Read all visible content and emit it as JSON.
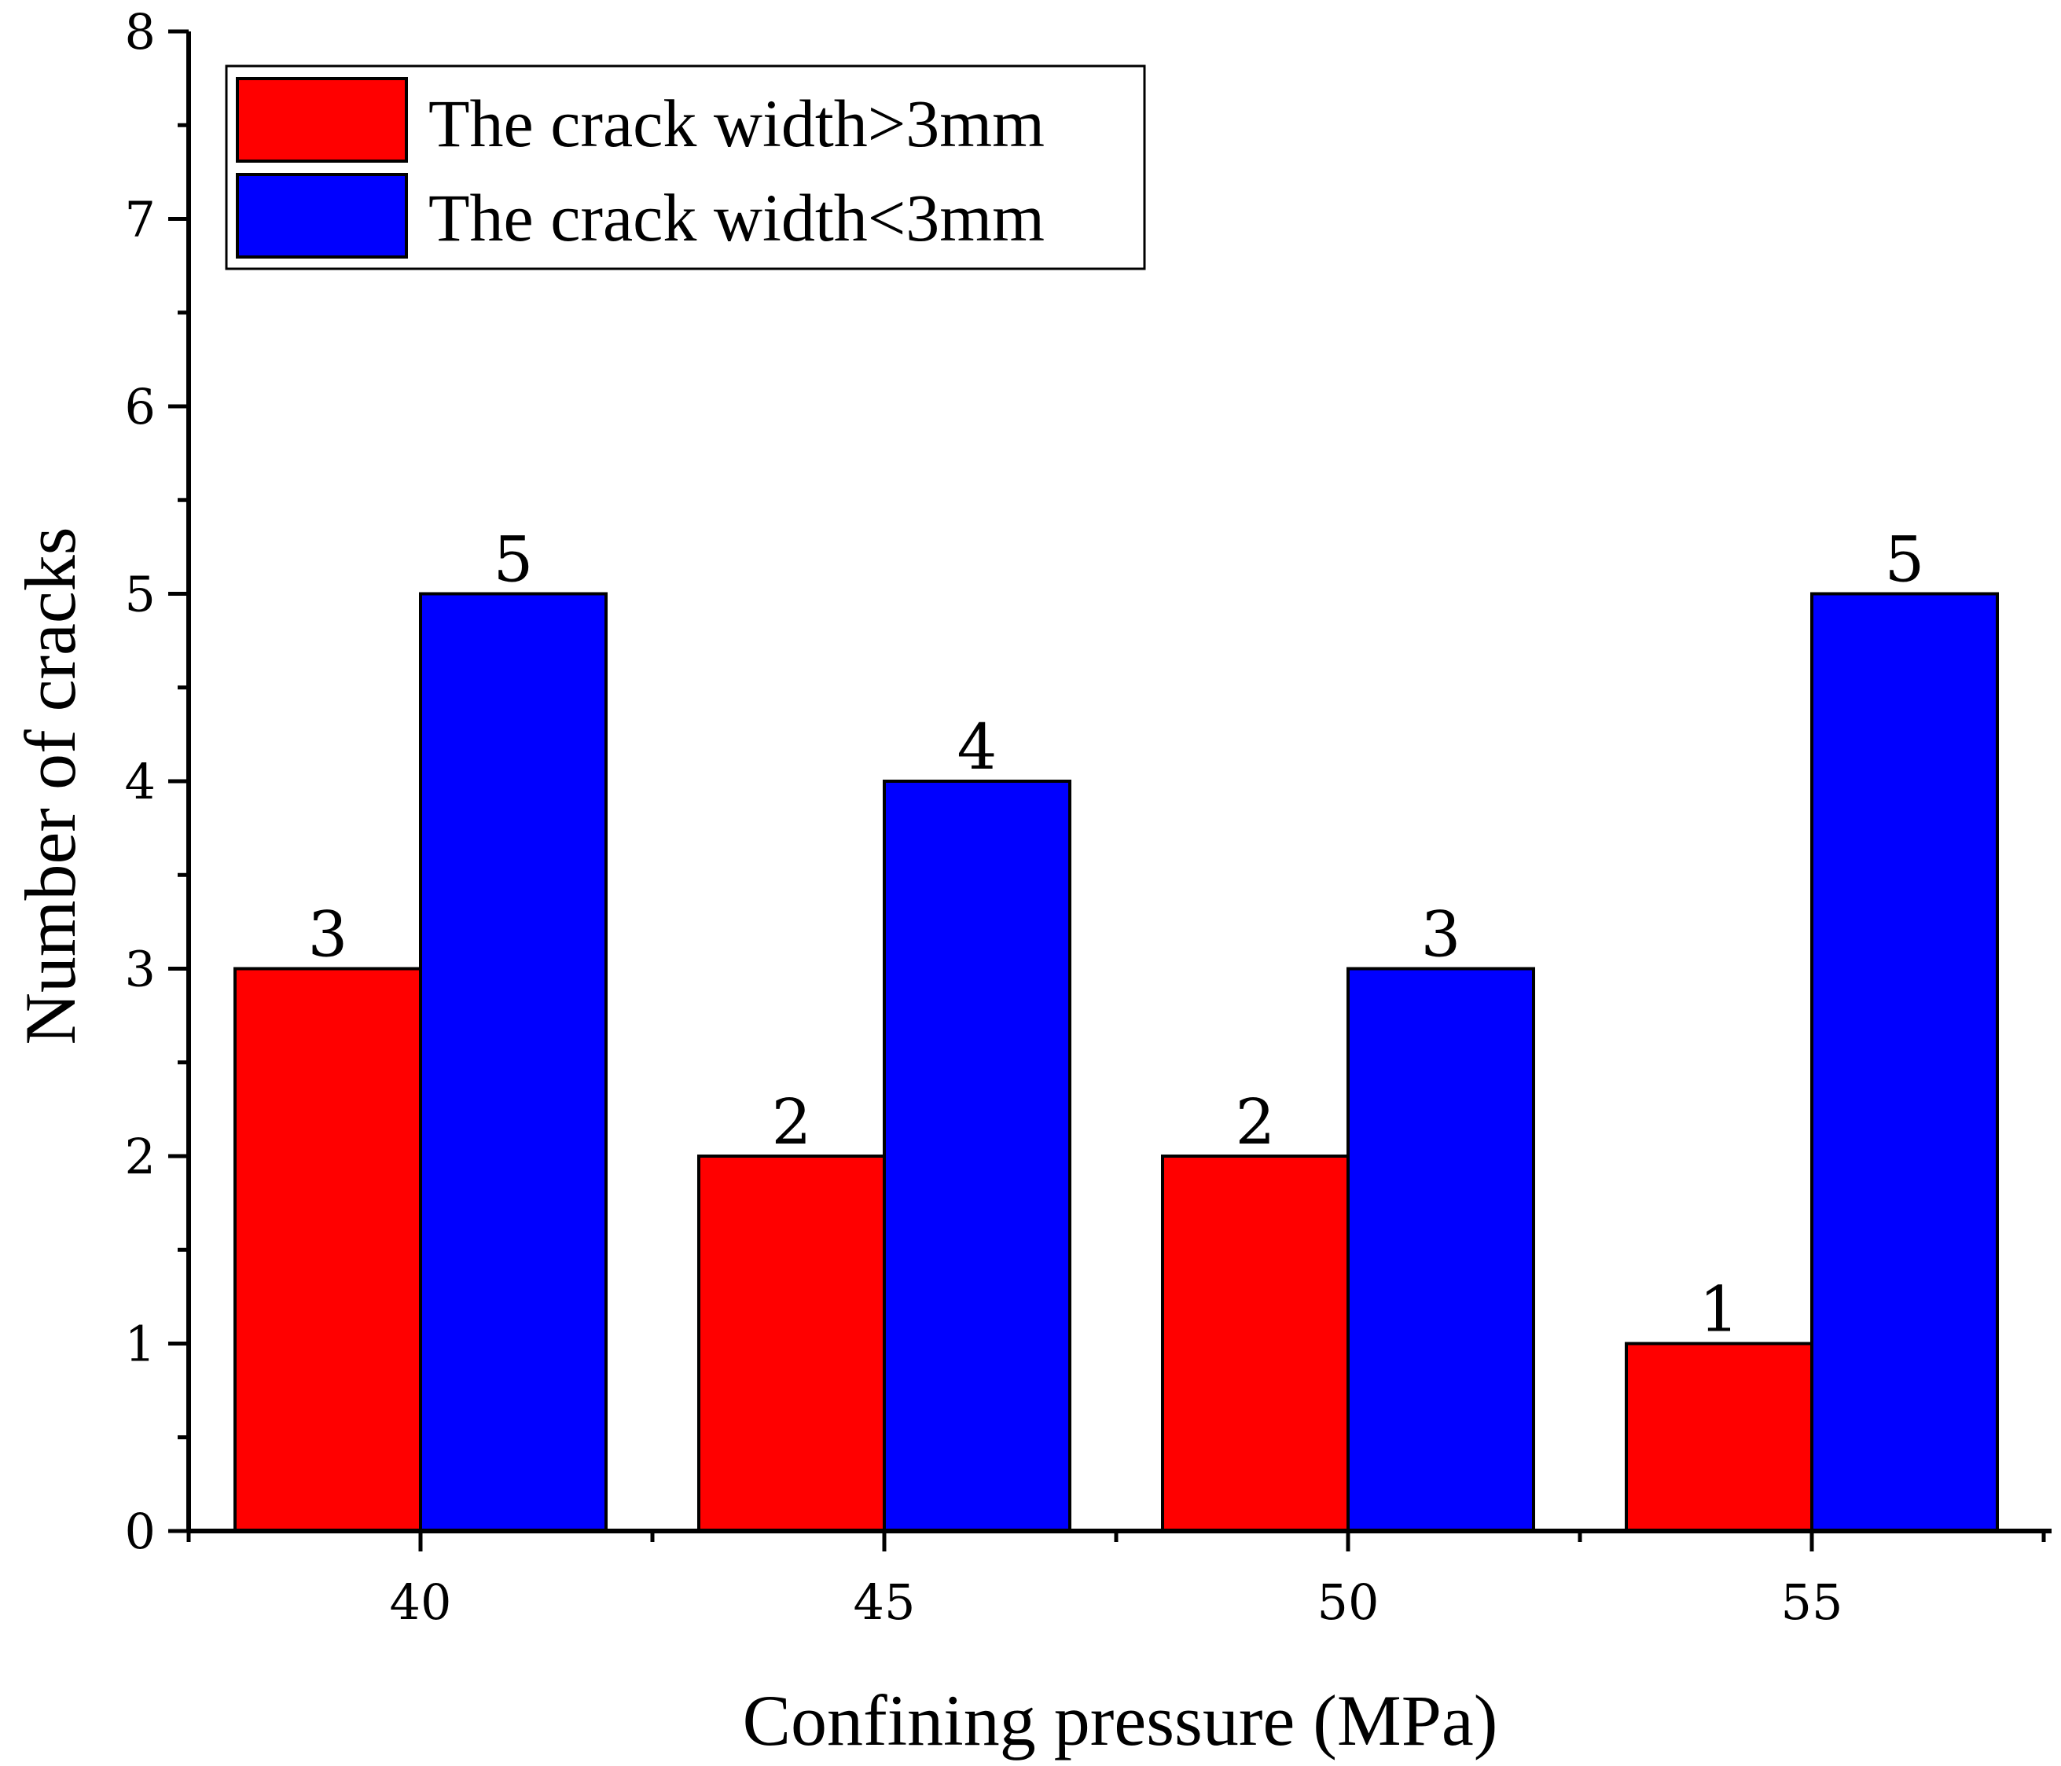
{
  "chart_data": {
    "type": "bar",
    "categories": [
      "40",
      "45",
      "50",
      "55"
    ],
    "series": [
      {
        "name": "The crack width>3mm",
        "values": [
          3,
          2,
          2,
          1
        ],
        "color": "#ff0000"
      },
      {
        "name": "The crack width<3mm",
        "values": [
          5,
          4,
          3,
          5
        ],
        "color": "#0000ff"
      }
    ],
    "xlabel": "Confining pressure (MPa)",
    "ylabel": "Number of cracks",
    "ylim": [
      0,
      8
    ],
    "yticks": [
      "0",
      "1",
      "2",
      "3",
      "4",
      "5",
      "6",
      "7",
      "8"
    ],
    "grid": false,
    "legend_position": "top-left",
    "data_labels": true
  }
}
